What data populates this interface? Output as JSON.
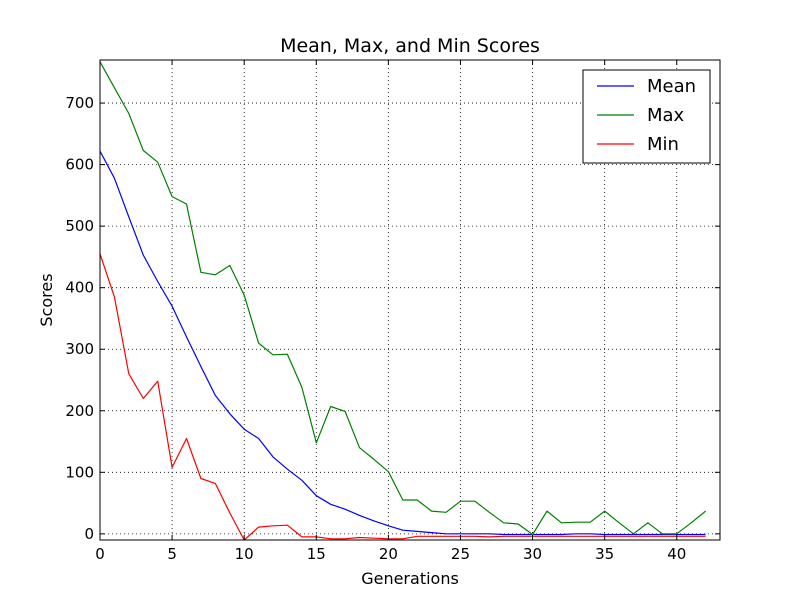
{
  "chart_data": {
    "type": "line",
    "title": "Mean, Max, and Min Scores",
    "xlabel": "Generations",
    "ylabel": "Scores",
    "xlim": [
      0,
      43
    ],
    "ylim": [
      -10,
      770
    ],
    "xticks": [
      0,
      5,
      10,
      15,
      20,
      25,
      30,
      35,
      40
    ],
    "yticks": [
      0,
      100,
      200,
      300,
      400,
      500,
      600,
      700
    ],
    "grid": true,
    "legend_position": "top-right",
    "x": [
      0,
      1,
      2,
      3,
      4,
      5,
      6,
      7,
      8,
      9,
      10,
      11,
      12,
      13,
      14,
      15,
      16,
      17,
      18,
      19,
      20,
      21,
      22,
      23,
      24,
      25,
      26,
      27,
      28,
      29,
      30,
      31,
      32,
      33,
      34,
      35,
      36,
      37,
      38,
      39,
      40,
      41,
      42
    ],
    "series": [
      {
        "name": "Mean",
        "color": "#0000ff",
        "values": [
          622,
          578,
          515,
          453,
          410,
          370,
          320,
          272,
          225,
          195,
          170,
          155,
          125,
          105,
          87,
          62,
          48,
          40,
          30,
          21,
          13,
          6,
          4,
          2,
          0,
          0,
          0,
          0,
          -1,
          -1,
          -1,
          -1,
          -1,
          0,
          0,
          -1,
          -1,
          -1,
          -1,
          -1,
          -1,
          -1,
          -1
        ]
      },
      {
        "name": "Max",
        "color": "#008000",
        "values": [
          767,
          725,
          683,
          623,
          604,
          548,
          536,
          425,
          421,
          436,
          388,
          310,
          291,
          292,
          238,
          148,
          207,
          199,
          140,
          121,
          101,
          55,
          55,
          37,
          35,
          53,
          53,
          35,
          18,
          16,
          -1,
          37,
          18,
          19,
          19,
          37,
          18,
          0,
          18,
          0,
          0,
          18,
          37
        ]
      },
      {
        "name": "Min",
        "color": "#ff0000",
        "values": [
          455,
          385,
          260,
          220,
          248,
          108,
          155,
          90,
          82,
          34,
          -10,
          11,
          13,
          14,
          -5,
          -5,
          -8,
          -8,
          -6,
          -7,
          -8,
          -8,
          -4,
          -4,
          -4,
          -4,
          -4,
          -5,
          -4,
          -4,
          -4,
          -4,
          -4,
          -4,
          -4,
          -4,
          -4,
          -4,
          -4,
          -4,
          -4,
          -4,
          -4
        ]
      }
    ]
  }
}
